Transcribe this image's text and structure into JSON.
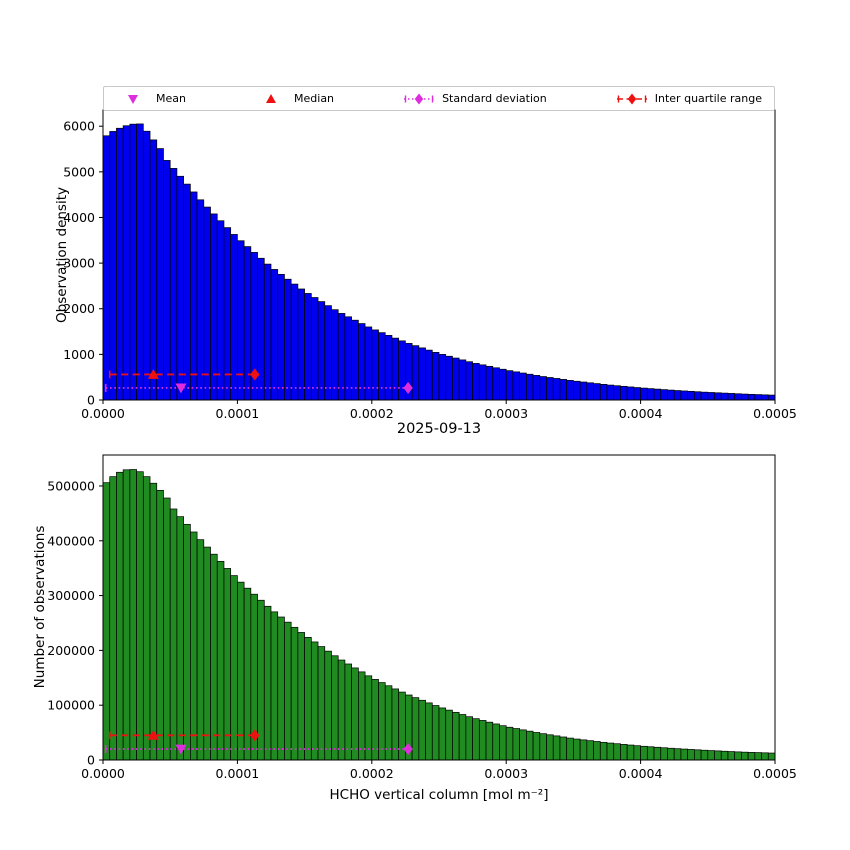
{
  "figure": {
    "title": "2025-09-13",
    "background": "#ffffff"
  },
  "colors": {
    "top_bar": "#0000f0",
    "bottom_bar": "#208b20",
    "bar_edge": "#000000",
    "magenta": "#dd2ddd",
    "red": "#ee1111"
  },
  "legend": {
    "items": [
      {
        "name": "mean",
        "label": "Mean",
        "icon": "triangle-down",
        "color": "#dd2ddd",
        "line": "none"
      },
      {
        "name": "median",
        "label": "Median",
        "icon": "triangle-up",
        "color": "#ee1111",
        "line": "none"
      },
      {
        "name": "standard-deviation",
        "label": "Standard deviation",
        "icon": "diamond",
        "color": "#dd2ddd",
        "line": "dotted"
      },
      {
        "name": "inter-quartile-range",
        "label": "Inter quartile range",
        "icon": "diamond",
        "color": "#ee1111",
        "line": "dashed"
      }
    ]
  },
  "chart_data": [
    {
      "type": "bar",
      "subplot": "top",
      "ylabel": "Observation density",
      "bar_color": "#0000f0",
      "edge_color": "#000000",
      "x_start": 0,
      "x_end": 0.0005,
      "bins": 100,
      "ylim": [
        0,
        6355
      ],
      "yticks": [
        0,
        1000,
        2000,
        3000,
        4000,
        5000,
        6000
      ],
      "xticks": [
        0,
        0.0001,
        0.0002,
        0.0003,
        0.0004,
        0.0005
      ],
      "xtick_labels": [
        "0.0000",
        "0.0001",
        "0.0002",
        "0.0003",
        "0.0004",
        "0.0005"
      ],
      "values": [
        5790,
        5885,
        5955,
        6010,
        6045,
        6050,
        5890,
        5700,
        5510,
        5250,
        5075,
        4903,
        4731,
        4559,
        4387,
        4228,
        4078,
        3928,
        3778,
        3628,
        3490,
        3362,
        3234,
        3106,
        2978,
        2861,
        2754,
        2647,
        2540,
        2433,
        2335,
        2246,
        2157,
        2068,
        1979,
        1897,
        1823,
        1749,
        1675,
        1601,
        1536,
        1476,
        1416,
        1356,
        1296,
        1240,
        1191,
        1142,
        1093,
        1044,
        999,
        959,
        919,
        879,
        839,
        802,
        770,
        738,
        706,
        674,
        643,
        617,
        591,
        565,
        539,
        514,
        493,
        472,
        451,
        430,
        411,
        394,
        377,
        360,
        343,
        327,
        313,
        300,
        286,
        273,
        261,
        250,
        239,
        228,
        217,
        207,
        198,
        190,
        181,
        172,
        165,
        158,
        151,
        144,
        137,
        130,
        124,
        119,
        113,
        108
      ],
      "markers": {
        "iqr": {
          "y": 560,
          "x1": 5e-06,
          "x2": 0.000113,
          "median_x": 3.75e-05
        },
        "std": {
          "y": 265,
          "x1": 2e-06,
          "x2": 0.000227,
          "mean_x": 5.8e-05
        }
      }
    },
    {
      "type": "bar",
      "subplot": "bottom",
      "ylabel": "Number of observations",
      "xlabel": "HCHO vertical column [mol m⁻²]",
      "bar_color": "#208b20",
      "edge_color": "#000000",
      "x_start": 0,
      "x_end": 0.0005,
      "bins": 100,
      "ylim": [
        0,
        556500
      ],
      "yticks": [
        0,
        100000,
        200000,
        300000,
        400000,
        500000
      ],
      "xticks": [
        0,
        0.0001,
        0.0002,
        0.0003,
        0.0004,
        0.0005
      ],
      "xtick_labels": [
        "0.0000",
        "0.0001",
        "0.0002",
        "0.0003",
        "0.0004",
        "0.0005"
      ],
      "values": [
        506000,
        517000,
        525000,
        529500,
        530000,
        526000,
        517000,
        505000,
        492000,
        478000,
        458000,
        444000,
        430000,
        416000,
        402000,
        388500,
        375500,
        362500,
        349500,
        336500,
        324500,
        313500,
        302500,
        291500,
        280500,
        270300,
        260900,
        251500,
        242100,
        232700,
        223800,
        215400,
        207000,
        198600,
        190200,
        182400,
        175200,
        168000,
        160800,
        153600,
        147100,
        141300,
        135500,
        129700,
        123900,
        118600,
        113800,
        109000,
        104200,
        99400,
        95000,
        91000,
        87000,
        83000,
        79000,
        75400,
        72200,
        69000,
        65800,
        62600,
        59800,
        57400,
        55000,
        52600,
        50200,
        48000,
        46000,
        44000,
        42000,
        40000,
        38250,
        36750,
        35250,
        33750,
        32250,
        30900,
        29700,
        28500,
        27300,
        26100,
        25050,
        24150,
        23250,
        22350,
        21450,
        20650,
        19950,
        19250,
        18550,
        17850,
        17200,
        16600,
        16000,
        15400,
        14800,
        14300,
        13900,
        13500,
        13100,
        12700
      ],
      "markers": {
        "iqr": {
          "y": 45000,
          "x1": 5e-06,
          "x2": 0.000113,
          "median_x": 3.75e-05
        },
        "std": {
          "y": 20000,
          "x1": 2e-06,
          "x2": 0.000227,
          "mean_x": 5.8e-05
        }
      }
    }
  ],
  "stats": {
    "mean": 5.8e-05,
    "median": 3.75e-05,
    "std_marker_x": 0.000227,
    "iqr_upper_x": 0.000113
  }
}
